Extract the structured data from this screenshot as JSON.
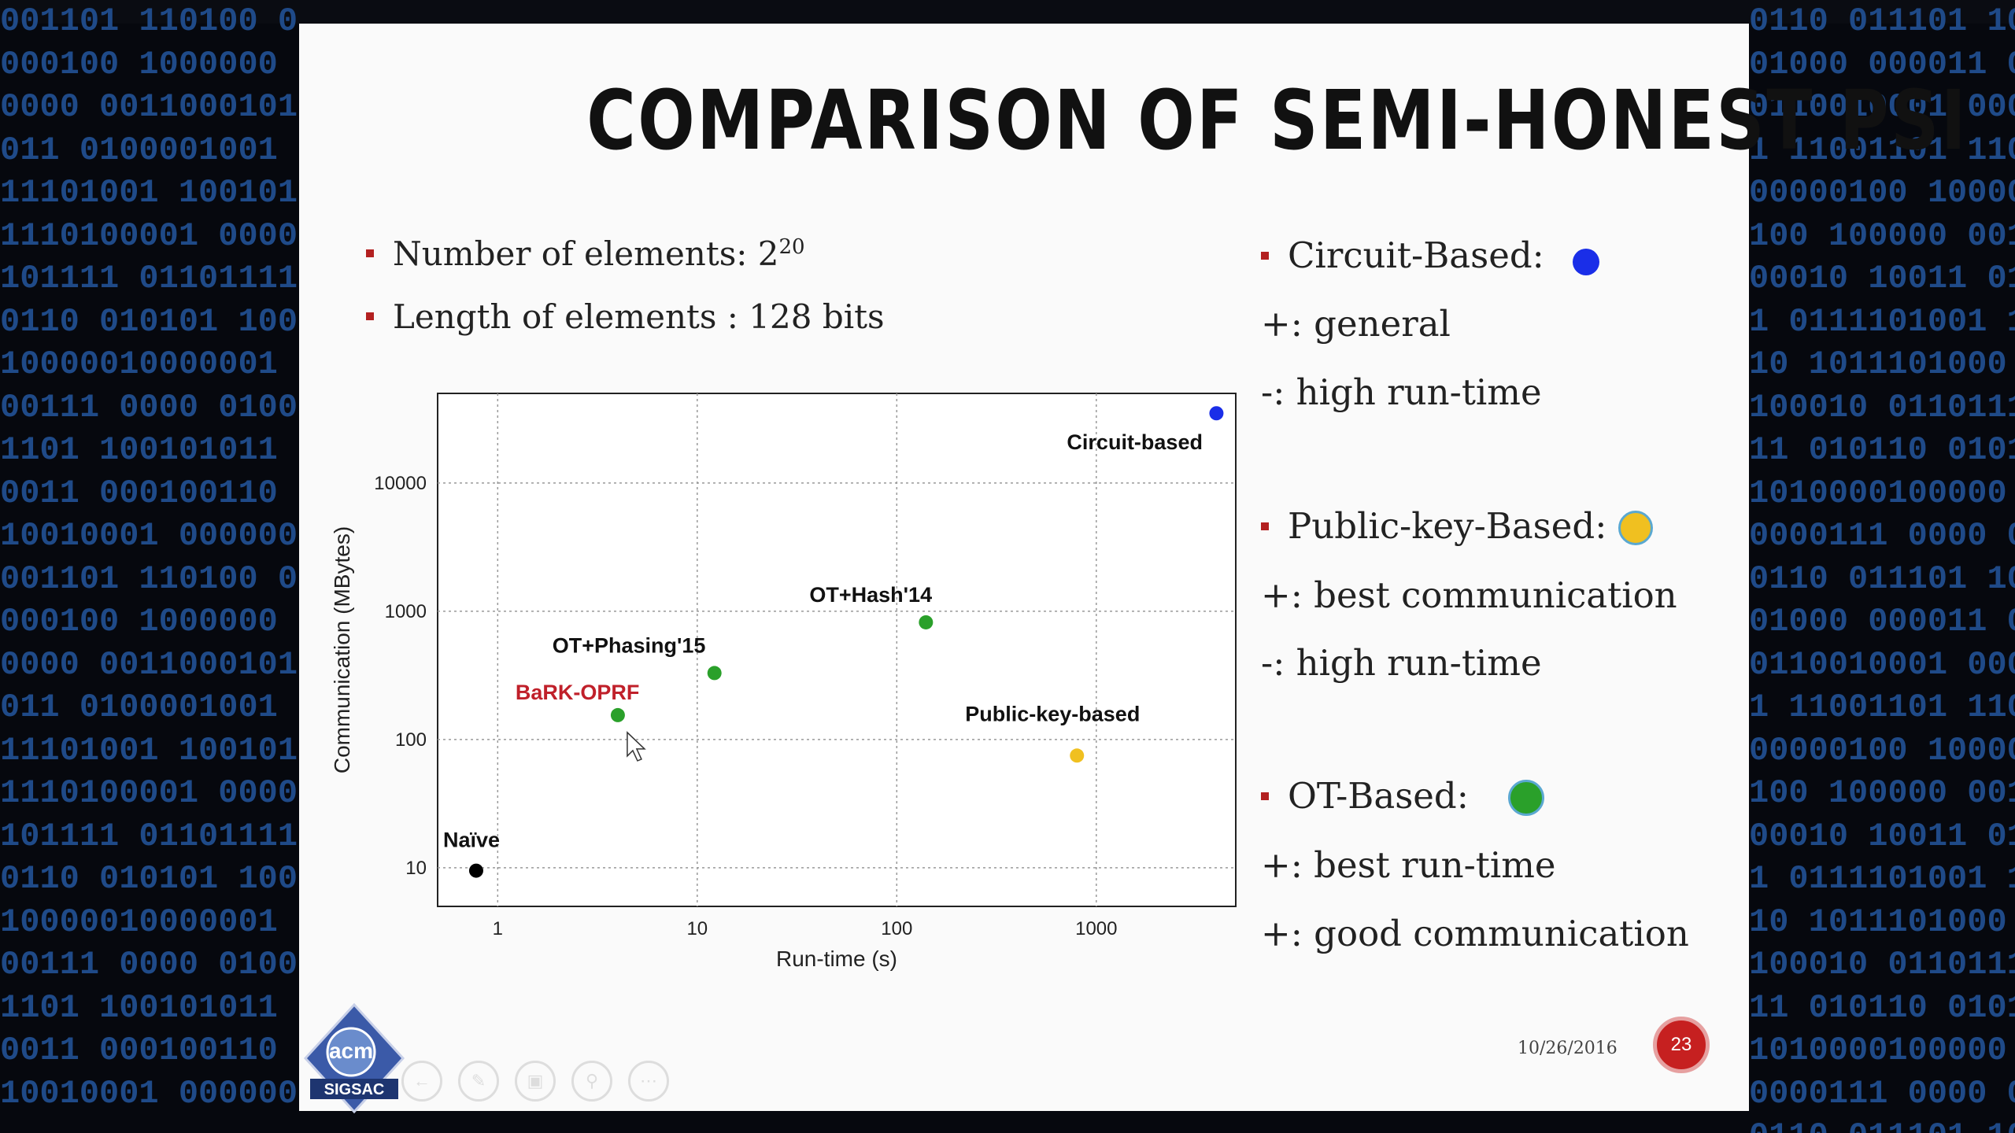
{
  "background": {
    "left_lines": [
      "001101 110100 00",
      "000100 1000000 0",
      "0000 0011000101",
      "011 0100001001 0",
      "11101001 1001010",
      "1110100001 00000",
      "101111 01101111",
      "0110 010101 1001",
      "10000010000001 1",
      "00111 0000 01001",
      "1101 100101011 1",
      "0011 000100110 0",
      "10010001 0000001",
      "001101 110100 00",
      "000100 1000000 0",
      "0000 0011000101",
      "011 0100001001 0",
      "11101001 1001010",
      "1110100001 00000",
      "101111 01101111",
      "0110 010101 1001",
      "10000010000001 1",
      "00111 0000 01001",
      "1101 100101011 1",
      "0011 000100110 0",
      "10010001 000000"
    ],
    "right_lines": [
      "0110 011101 10",
      "01000 000011 00",
      "0110010001 000",
      "1 11001101 110",
      "00000100 10000",
      "100 100000 001",
      "00010 10011 01",
      "1 0111101001 1",
      "10 1011101000",
      "100010 0110111",
      "11 010110 0101",
      "1010000100000",
      "0000111 0000 0",
      "0110 011101 10",
      "01000 000011 00",
      "0110010001 000",
      "1 11001101 110",
      "00000100 10000",
      "100 100000 001",
      "00010 10011 01",
      "1 0111101001 1",
      "10 1011101000",
      "100010 0110111",
      "11 010110 0101",
      "1010000100000",
      "0000111 0000 0",
      "0110 011101 10"
    ]
  },
  "slide": {
    "title": "COMPARISON OF SEMI-HONEST PSI",
    "bullets": [
      {
        "text": "Number of elements: 2",
        "sup": "20"
      },
      {
        "text": "Length of elements : 128 bits"
      }
    ],
    "right": {
      "circuit_head": "Circuit-Based:",
      "circuit_plus": "+: general",
      "circuit_minus": "-: high run-time",
      "pk_head": "Public-key-Based:",
      "pk_plus": "+: best communication",
      "pk_minus": "-: high run-time",
      "ot_head": "OT-Based:",
      "ot_plus1": "+: best run-time",
      "ot_plus2": "+: good communication"
    },
    "colors": {
      "circuit": "#1a2ee8",
      "public_key": "#f0c020",
      "ot": "#2aa02a",
      "naive": "#000000",
      "bullet": "#b32020"
    },
    "footer_date": "10/26/2016",
    "page_number": "23",
    "logo_text": "acm",
    "logo_subtext": "SIGSAC",
    "toolbar_icons": [
      "back-arrow-icon",
      "pen-icon",
      "slides-icon",
      "zoom-icon",
      "more-icon"
    ]
  },
  "chart_data": {
    "type": "scatter",
    "x_scale": "log",
    "y_scale": "log",
    "xlabel": "Run-time (s)",
    "ylabel": "Communication (MBytes)",
    "xlim": [
      0.5,
      5000
    ],
    "ylim": [
      5,
      50000
    ],
    "x_ticks": [
      "1",
      "10",
      "100",
      "1000"
    ],
    "y_ticks": [
      "10",
      "100",
      "1000",
      "10000"
    ],
    "grid": true,
    "points": [
      {
        "label": "Naïve",
        "x": 0.78,
        "y": 9.5,
        "color": "#000000",
        "label_color": "#111111"
      },
      {
        "label": "BaRK-OPRF",
        "x": 4.0,
        "y": 155,
        "color": "#2aa02a",
        "label_color": "#c0202a"
      },
      {
        "label": "OT+Phasing'15",
        "x": 12.2,
        "y": 330,
        "color": "#2aa02a",
        "label_color": "#111111"
      },
      {
        "label": "OT+Hash'14",
        "x": 140,
        "y": 820,
        "color": "#2aa02a",
        "label_color": "#111111"
      },
      {
        "label": "Public-key-based",
        "x": 800,
        "y": 75,
        "color": "#f0c020",
        "label_color": "#111111"
      },
      {
        "label": "Circuit-based",
        "x": 4000,
        "y": 35000,
        "color": "#1a2ee8",
        "label_color": "#111111"
      }
    ]
  }
}
